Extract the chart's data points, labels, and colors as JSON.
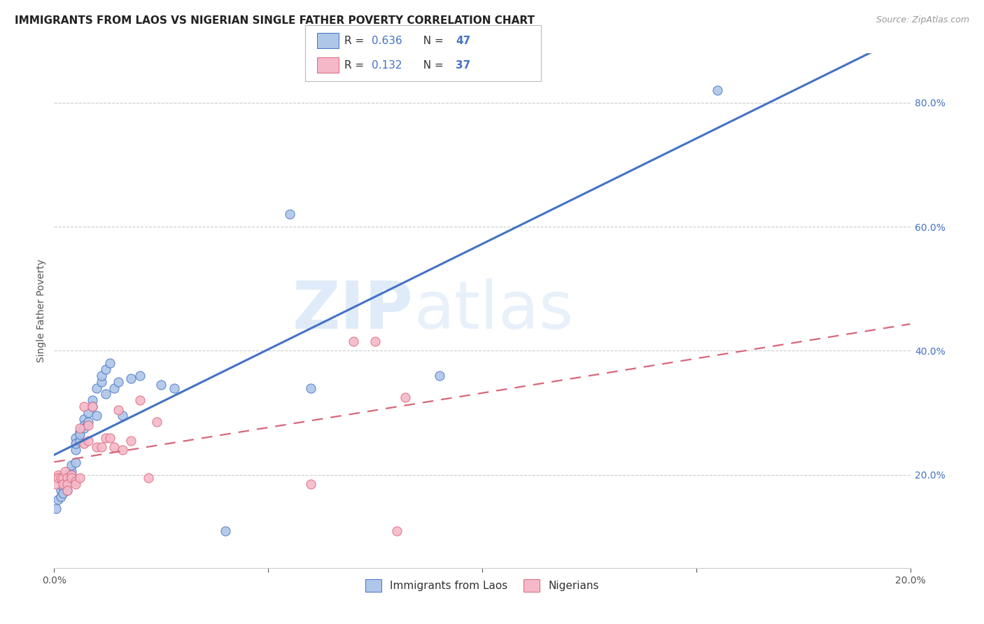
{
  "title": "IMMIGRANTS FROM LAOS VS NIGERIAN SINGLE FATHER POVERTY CORRELATION CHART",
  "source": "Source: ZipAtlas.com",
  "ylabel": "Single Father Poverty",
  "xlim": [
    0.0,
    0.2
  ],
  "ylim": [
    0.05,
    0.88
  ],
  "xtick_labels": [
    "0.0%",
    "",
    "",
    "",
    ""
  ],
  "xtick_vals": [
    0.0,
    0.05,
    0.1,
    0.15,
    0.2
  ],
  "xtick_edge_labels": [
    "0.0%",
    "20.0%"
  ],
  "xtick_edge_vals": [
    0.0,
    0.2
  ],
  "ytick_labels_right": [
    "20.0%",
    "40.0%",
    "60.0%",
    "80.0%"
  ],
  "ytick_vals_right": [
    0.2,
    0.4,
    0.6,
    0.8
  ],
  "legend_labels": [
    "Immigrants from Laos",
    "Nigerians"
  ],
  "R_laos": 0.636,
  "N_laos": 47,
  "R_nigerian": 0.132,
  "N_nigerian": 37,
  "laos_color": "#aec6e8",
  "nigerian_color": "#f5b8c8",
  "laos_line_color": "#4472c4",
  "nigerian_line_color": "#d9667a",
  "laos_x": [
    0.0005,
    0.001,
    0.0015,
    0.0015,
    0.002,
    0.002,
    0.0025,
    0.003,
    0.003,
    0.003,
    0.0035,
    0.004,
    0.004,
    0.004,
    0.005,
    0.005,
    0.005,
    0.005,
    0.006,
    0.006,
    0.006,
    0.007,
    0.007,
    0.007,
    0.008,
    0.008,
    0.009,
    0.009,
    0.01,
    0.01,
    0.011,
    0.011,
    0.012,
    0.012,
    0.013,
    0.014,
    0.015,
    0.016,
    0.018,
    0.02,
    0.025,
    0.028,
    0.04,
    0.055,
    0.06,
    0.09,
    0.155
  ],
  "laos_y": [
    0.145,
    0.16,
    0.175,
    0.165,
    0.18,
    0.17,
    0.185,
    0.2,
    0.19,
    0.175,
    0.195,
    0.205,
    0.215,
    0.2,
    0.22,
    0.24,
    0.26,
    0.25,
    0.27,
    0.255,
    0.265,
    0.29,
    0.28,
    0.275,
    0.3,
    0.285,
    0.32,
    0.31,
    0.34,
    0.295,
    0.35,
    0.36,
    0.37,
    0.33,
    0.38,
    0.34,
    0.35,
    0.295,
    0.355,
    0.36,
    0.345,
    0.34,
    0.11,
    0.62,
    0.34,
    0.36,
    0.82
  ],
  "nigerian_x": [
    0.0005,
    0.001,
    0.001,
    0.0015,
    0.002,
    0.002,
    0.0025,
    0.003,
    0.003,
    0.003,
    0.004,
    0.004,
    0.005,
    0.005,
    0.006,
    0.006,
    0.007,
    0.007,
    0.008,
    0.008,
    0.009,
    0.01,
    0.011,
    0.012,
    0.013,
    0.014,
    0.015,
    0.016,
    0.018,
    0.02,
    0.022,
    0.024,
    0.06,
    0.07,
    0.075,
    0.08,
    0.082
  ],
  "nigerian_y": [
    0.185,
    0.2,
    0.195,
    0.195,
    0.195,
    0.185,
    0.205,
    0.195,
    0.185,
    0.175,
    0.2,
    0.195,
    0.19,
    0.185,
    0.195,
    0.275,
    0.31,
    0.25,
    0.28,
    0.255,
    0.31,
    0.245,
    0.245,
    0.26,
    0.26,
    0.245,
    0.305,
    0.24,
    0.255,
    0.32,
    0.195,
    0.285,
    0.185,
    0.415,
    0.415,
    0.11,
    0.325
  ]
}
